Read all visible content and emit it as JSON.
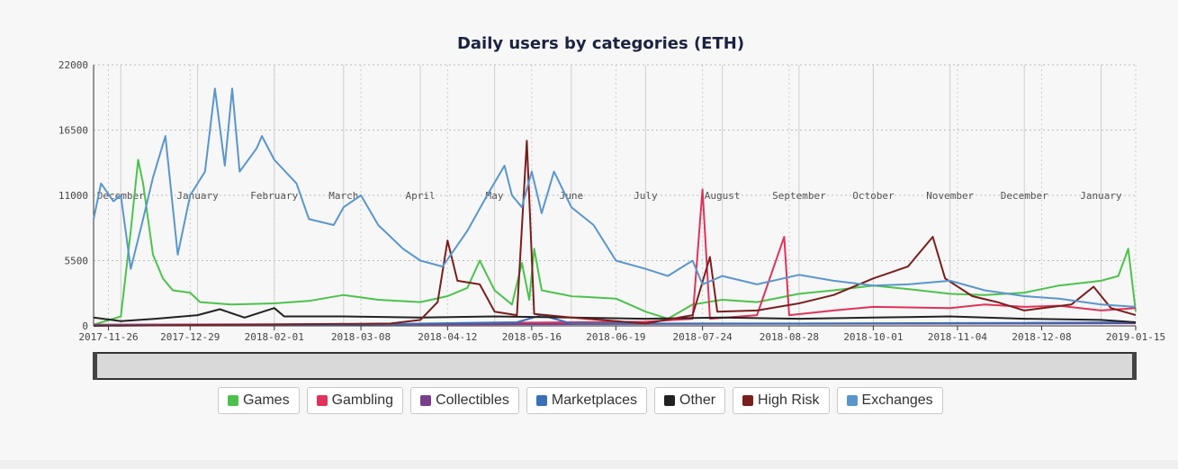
{
  "chart_data": {
    "type": "line",
    "title": "Daily users by categories (ETH)",
    "y_ticks": [
      "22000",
      "16500",
      "11000",
      "5500",
      "0"
    ],
    "y_tick_values": [
      22000,
      16500,
      11000,
      5500,
      0
    ],
    "ylim": [
      0,
      22000
    ],
    "xlim": [
      "2017-11-20",
      "2019-01-15"
    ],
    "x_ticks": [
      "2017-11-26",
      "2017-12-29",
      "2018-02-01",
      "2018-03-08",
      "2018-04-12",
      "2018-05-16",
      "2018-06-19",
      "2018-07-24",
      "2018-08-28",
      "2018-10-01",
      "2018-11-04",
      "2018-12-08",
      "2019-01-15"
    ],
    "month_labels": [
      {
        "label": "December",
        "date": "2017-12-01"
      },
      {
        "label": "January",
        "date": "2018-01-01"
      },
      {
        "label": "February",
        "date": "2018-02-01"
      },
      {
        "label": "March",
        "date": "2018-03-01"
      },
      {
        "label": "April",
        "date": "2018-04-01"
      },
      {
        "label": "May",
        "date": "2018-05-01"
      },
      {
        "label": "June",
        "date": "2018-06-01"
      },
      {
        "label": "July",
        "date": "2018-07-01"
      },
      {
        "label": "August",
        "date": "2018-08-01"
      },
      {
        "label": "September",
        "date": "2018-09-01"
      },
      {
        "label": "October",
        "date": "2018-10-01"
      },
      {
        "label": "November",
        "date": "2018-11-01"
      },
      {
        "label": "December",
        "date": "2018-12-01"
      },
      {
        "label": "January",
        "date": "2019-01-01"
      }
    ],
    "grid": true,
    "legend_position": "bottom",
    "series": [
      {
        "name": "Games",
        "color": "#4cc24c",
        "points": [
          [
            "2017-11-20",
            100
          ],
          [
            "2017-12-01",
            800
          ],
          [
            "2017-12-05",
            8000
          ],
          [
            "2017-12-08",
            14000
          ],
          [
            "2017-12-10",
            12000
          ],
          [
            "2017-12-14",
            6000
          ],
          [
            "2017-12-18",
            4000
          ],
          [
            "2017-12-22",
            3000
          ],
          [
            "2017-12-29",
            2800
          ],
          [
            "2018-01-02",
            2000
          ],
          [
            "2018-01-15",
            1800
          ],
          [
            "2018-02-01",
            1900
          ],
          [
            "2018-02-15",
            2100
          ],
          [
            "2018-03-01",
            2600
          ],
          [
            "2018-03-15",
            2200
          ],
          [
            "2018-04-01",
            2000
          ],
          [
            "2018-04-12",
            2500
          ],
          [
            "2018-04-20",
            3200
          ],
          [
            "2018-04-25",
            5500
          ],
          [
            "2018-05-01",
            3000
          ],
          [
            "2018-05-08",
            1800
          ],
          [
            "2018-05-12",
            5300
          ],
          [
            "2018-05-15",
            2200
          ],
          [
            "2018-05-17",
            6500
          ],
          [
            "2018-05-20",
            3000
          ],
          [
            "2018-06-01",
            2500
          ],
          [
            "2018-06-19",
            2300
          ],
          [
            "2018-07-01",
            1200
          ],
          [
            "2018-07-10",
            600
          ],
          [
            "2018-07-20",
            1800
          ],
          [
            "2018-08-01",
            2200
          ],
          [
            "2018-08-15",
            2000
          ],
          [
            "2018-09-01",
            2700
          ],
          [
            "2018-09-15",
            3000
          ],
          [
            "2018-10-01",
            3400
          ],
          [
            "2018-10-15",
            3100
          ],
          [
            "2018-11-01",
            2700
          ],
          [
            "2018-11-15",
            2600
          ],
          [
            "2018-12-01",
            2800
          ],
          [
            "2018-12-15",
            3400
          ],
          [
            "2019-01-01",
            3800
          ],
          [
            "2019-01-08",
            4200
          ],
          [
            "2019-01-12",
            6500
          ],
          [
            "2019-01-15",
            1200
          ]
        ]
      },
      {
        "name": "Gambling",
        "color": "#e0325a",
        "points": [
          [
            "2017-11-20",
            100
          ],
          [
            "2018-04-01",
            150
          ],
          [
            "2018-05-01",
            250
          ],
          [
            "2018-06-01",
            300
          ],
          [
            "2018-07-01",
            350
          ],
          [
            "2018-07-20",
            600
          ],
          [
            "2018-07-24",
            11500
          ],
          [
            "2018-07-27",
            600
          ],
          [
            "2018-08-15",
            900
          ],
          [
            "2018-08-26",
            7500
          ],
          [
            "2018-08-28",
            900
          ],
          [
            "2018-09-15",
            1300
          ],
          [
            "2018-10-01",
            1600
          ],
          [
            "2018-11-01",
            1500
          ],
          [
            "2018-11-15",
            1800
          ],
          [
            "2018-12-01",
            1600
          ],
          [
            "2018-12-15",
            1700
          ],
          [
            "2019-01-01",
            1300
          ],
          [
            "2019-01-15",
            1500
          ]
        ]
      },
      {
        "name": "Collectibles",
        "color": "#7a3f8c",
        "points": [
          [
            "2017-11-20",
            80
          ],
          [
            "2018-03-01",
            120
          ],
          [
            "2018-06-01",
            150
          ],
          [
            "2018-09-01",
            180
          ],
          [
            "2018-12-01",
            200
          ],
          [
            "2019-01-15",
            220
          ]
        ]
      },
      {
        "name": "Marketplaces",
        "color": "#3b6fb6",
        "points": [
          [
            "2017-11-20",
            60
          ],
          [
            "2018-03-01",
            100
          ],
          [
            "2018-05-10",
            300
          ],
          [
            "2018-05-20",
            900
          ],
          [
            "2018-06-01",
            200
          ],
          [
            "2018-09-01",
            200
          ],
          [
            "2018-12-01",
            250
          ],
          [
            "2019-01-15",
            300
          ]
        ]
      },
      {
        "name": "Other",
        "color": "#222222",
        "points": [
          [
            "2017-11-20",
            700
          ],
          [
            "2017-12-01",
            400
          ],
          [
            "2017-12-15",
            600
          ],
          [
            "2018-01-01",
            900
          ],
          [
            "2018-01-10",
            1400
          ],
          [
            "2018-01-20",
            700
          ],
          [
            "2018-02-01",
            1500
          ],
          [
            "2018-02-05",
            800
          ],
          [
            "2018-03-01",
            800
          ],
          [
            "2018-04-01",
            700
          ],
          [
            "2018-05-01",
            800
          ],
          [
            "2018-06-01",
            700
          ],
          [
            "2018-07-01",
            600
          ],
          [
            "2018-08-01",
            700
          ],
          [
            "2018-09-01",
            600
          ],
          [
            "2018-10-01",
            700
          ],
          [
            "2018-11-01",
            800
          ],
          [
            "2018-12-01",
            600
          ],
          [
            "2019-01-01",
            500
          ],
          [
            "2019-01-15",
            300
          ]
        ]
      },
      {
        "name": "High Risk",
        "color": "#7a1e1e",
        "points": [
          [
            "2017-11-20",
            0
          ],
          [
            "2018-03-20",
            200
          ],
          [
            "2018-04-01",
            500
          ],
          [
            "2018-04-08",
            2000
          ],
          [
            "2018-04-12",
            7200
          ],
          [
            "2018-04-16",
            3800
          ],
          [
            "2018-04-25",
            3500
          ],
          [
            "2018-05-01",
            1200
          ],
          [
            "2018-05-10",
            900
          ],
          [
            "2018-05-14",
            15600
          ],
          [
            "2018-05-17",
            1000
          ],
          [
            "2018-06-01",
            700
          ],
          [
            "2018-07-01",
            200
          ],
          [
            "2018-07-20",
            900
          ],
          [
            "2018-07-27",
            5800
          ],
          [
            "2018-07-30",
            1200
          ],
          [
            "2018-08-15",
            1300
          ],
          [
            "2018-09-01",
            1900
          ],
          [
            "2018-09-15",
            2600
          ],
          [
            "2018-10-01",
            4000
          ],
          [
            "2018-10-15",
            5000
          ],
          [
            "2018-10-25",
            7500
          ],
          [
            "2018-10-30",
            4000
          ],
          [
            "2018-11-10",
            2500
          ],
          [
            "2018-11-20",
            2000
          ],
          [
            "2018-12-01",
            1300
          ],
          [
            "2018-12-20",
            1800
          ],
          [
            "2018-12-29",
            3300
          ],
          [
            "2019-01-05",
            1500
          ],
          [
            "2019-01-15",
            900
          ]
        ]
      },
      {
        "name": "Exchanges",
        "color": "#5a96cc",
        "points": [
          [
            "2017-11-20",
            9000
          ],
          [
            "2017-11-23",
            12000
          ],
          [
            "2017-11-28",
            10500
          ],
          [
            "2017-12-01",
            11000
          ],
          [
            "2017-12-05",
            4800
          ],
          [
            "2017-12-10",
            9000
          ],
          [
            "2017-12-14",
            12500
          ],
          [
            "2017-12-19",
            16000
          ],
          [
            "2017-12-24",
            6000
          ],
          [
            "2017-12-29",
            11000
          ],
          [
            "2018-01-04",
            13000
          ],
          [
            "2018-01-08",
            20000
          ],
          [
            "2018-01-12",
            13500
          ],
          [
            "2018-01-15",
            20000
          ],
          [
            "2018-01-18",
            13000
          ],
          [
            "2018-01-25",
            15000
          ],
          [
            "2018-01-27",
            16000
          ],
          [
            "2018-02-01",
            14000
          ],
          [
            "2018-02-10",
            12000
          ],
          [
            "2018-02-15",
            9000
          ],
          [
            "2018-02-25",
            8500
          ],
          [
            "2018-03-01",
            10000
          ],
          [
            "2018-03-08",
            11000
          ],
          [
            "2018-03-15",
            8500
          ],
          [
            "2018-03-25",
            6500
          ],
          [
            "2018-04-01",
            5500
          ],
          [
            "2018-04-10",
            5000
          ],
          [
            "2018-04-20",
            8000
          ],
          [
            "2018-04-28",
            11000
          ],
          [
            "2018-05-05",
            13500
          ],
          [
            "2018-05-08",
            11000
          ],
          [
            "2018-05-12",
            10000
          ],
          [
            "2018-05-16",
            13000
          ],
          [
            "2018-05-20",
            9500
          ],
          [
            "2018-05-25",
            13000
          ],
          [
            "2018-06-01",
            10000
          ],
          [
            "2018-06-10",
            8500
          ],
          [
            "2018-06-19",
            5500
          ],
          [
            "2018-07-01",
            4800
          ],
          [
            "2018-07-10",
            4200
          ],
          [
            "2018-07-20",
            5500
          ],
          [
            "2018-07-24",
            3500
          ],
          [
            "2018-08-01",
            4200
          ],
          [
            "2018-08-15",
            3500
          ],
          [
            "2018-09-01",
            4300
          ],
          [
            "2018-09-15",
            3800
          ],
          [
            "2018-10-01",
            3400
          ],
          [
            "2018-10-15",
            3500
          ],
          [
            "2018-11-01",
            3800
          ],
          [
            "2018-11-15",
            3000
          ],
          [
            "2018-12-01",
            2500
          ],
          [
            "2018-12-15",
            2300
          ],
          [
            "2019-01-01",
            1800
          ],
          [
            "2019-01-15",
            1600
          ]
        ]
      }
    ]
  },
  "legend": [
    {
      "label": "Games",
      "color": "#4cc24c"
    },
    {
      "label": "Gambling",
      "color": "#e0325a"
    },
    {
      "label": "Collectibles",
      "color": "#7a3f8c"
    },
    {
      "label": "Marketplaces",
      "color": "#3b6fb6"
    },
    {
      "label": "Other",
      "color": "#222222"
    },
    {
      "label": "High Risk",
      "color": "#7a1e1e"
    },
    {
      "label": "Exchanges",
      "color": "#5a96cc"
    }
  ]
}
